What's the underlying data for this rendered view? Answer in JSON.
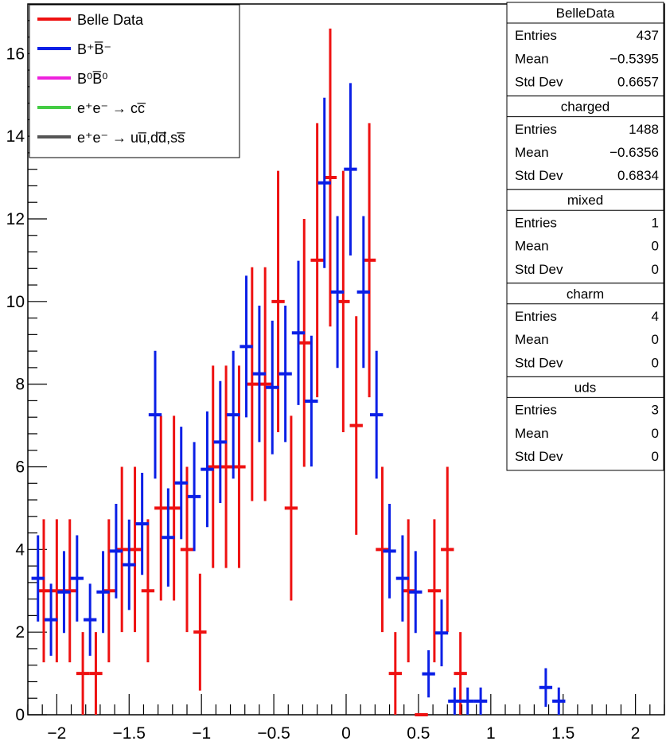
{
  "chart_data": {
    "type": "scatter",
    "title": "",
    "xlabel": "",
    "ylabel": "",
    "xlim": [
      -2.2,
      2.2
    ],
    "ylim": [
      0,
      17.2
    ],
    "x_ticks": [
      -2,
      -1.5,
      -1,
      -0.5,
      0,
      0.5,
      1,
      1.5,
      2
    ],
    "x_tick_labels": [
      "−2",
      "−1.5",
      "−1",
      "−0.5",
      "0",
      "0.5",
      "1",
      "1.5",
      "2"
    ],
    "y_ticks": [
      0,
      2,
      4,
      6,
      8,
      10,
      12,
      14,
      16
    ],
    "y_tick_labels": [
      "0",
      "2",
      "4",
      "6",
      "8",
      "10",
      "12",
      "14",
      "16"
    ],
    "grid": false,
    "legend_position": "top-left",
    "legend": [
      {
        "label": "Belle Data",
        "color": "#ee1111"
      },
      {
        "label": "B⁺B̅⁻",
        "color": "#0a1fe6"
      },
      {
        "label": "B⁰B̅⁰",
        "color": "#ee22dd"
      },
      {
        "label": "e⁺e⁻ → cc̅",
        "color": "#44cc44"
      },
      {
        "label": "e⁺e⁻ → uu̅,dd̅,ss̅",
        "color": "#555555"
      }
    ],
    "series": [
      {
        "name": "Belle Data",
        "color": "#ee1111",
        "bin_width": 0.09,
        "points": [
          [
            -2.09,
            3
          ],
          [
            -2.0,
            3
          ],
          [
            -1.91,
            3
          ],
          [
            -1.82,
            1
          ],
          [
            -1.73,
            1
          ],
          [
            -1.64,
            3
          ],
          [
            -1.55,
            4
          ],
          [
            -1.46,
            4
          ],
          [
            -1.37,
            3
          ],
          [
            -1.28,
            5
          ],
          [
            -1.19,
            5
          ],
          [
            -1.1,
            4
          ],
          [
            -1.01,
            2
          ],
          [
            -0.92,
            6
          ],
          [
            -0.83,
            6
          ],
          [
            -0.74,
            6
          ],
          [
            -0.65,
            8
          ],
          [
            -0.56,
            8
          ],
          [
            -0.47,
            10
          ],
          [
            -0.38,
            5
          ],
          [
            -0.29,
            9
          ],
          [
            -0.2,
            11
          ],
          [
            -0.11,
            13
          ],
          [
            -0.02,
            10
          ],
          [
            0.07,
            7
          ],
          [
            0.16,
            11
          ],
          [
            0.25,
            4
          ],
          [
            0.34,
            1
          ],
          [
            0.43,
            3
          ],
          [
            0.52,
            0
          ],
          [
            0.61,
            3
          ],
          [
            0.7,
            4
          ],
          [
            0.79,
            1
          ]
        ]
      },
      {
        "name": "charged",
        "color": "#0a1fe6",
        "bin_width": 0.09,
        "points": [
          [
            -2.13,
            3.3
          ],
          [
            -2.04,
            2.3
          ],
          [
            -1.95,
            2.97
          ],
          [
            -1.86,
            3.3
          ],
          [
            -1.77,
            2.3
          ],
          [
            -1.68,
            2.97
          ],
          [
            -1.59,
            3.96
          ],
          [
            -1.5,
            3.63
          ],
          [
            -1.41,
            4.62
          ],
          [
            -1.32,
            7.26
          ],
          [
            -1.23,
            4.29
          ],
          [
            -1.14,
            5.61
          ],
          [
            -1.05,
            5.28
          ],
          [
            -0.96,
            5.94
          ],
          [
            -0.87,
            6.6
          ],
          [
            -0.78,
            7.26
          ],
          [
            -0.69,
            8.91
          ],
          [
            -0.6,
            8.25
          ],
          [
            -0.51,
            7.92
          ],
          [
            -0.42,
            8.25
          ],
          [
            -0.33,
            9.24
          ],
          [
            -0.24,
            7.59
          ],
          [
            -0.15,
            12.87
          ],
          [
            -0.06,
            10.23
          ],
          [
            0.03,
            13.2
          ],
          [
            0.12,
            10.23
          ],
          [
            0.21,
            7.26
          ],
          [
            0.3,
            3.96
          ],
          [
            0.39,
            3.3
          ],
          [
            0.48,
            2.97
          ],
          [
            0.57,
            0.99
          ],
          [
            0.66,
            1.98
          ],
          [
            0.75,
            0.33
          ],
          [
            0.84,
            0.33
          ],
          [
            0.93,
            0.33
          ],
          [
            1.38,
            0.66
          ],
          [
            1.47,
            0.33
          ]
        ]
      }
    ],
    "stats_boxes": [
      {
        "name": "BelleData",
        "rows": [
          [
            "Entries",
            "437"
          ],
          [
            "Mean",
            "−0.5395"
          ],
          [
            "Std Dev",
            "0.6657"
          ]
        ]
      },
      {
        "name": "charged",
        "rows": [
          [
            "Entries",
            "1488"
          ],
          [
            "Mean",
            "−0.6356"
          ],
          [
            "Std Dev",
            "0.6834"
          ]
        ]
      },
      {
        "name": "mixed",
        "rows": [
          [
            "Entries",
            "1"
          ],
          [
            "Mean",
            "0"
          ],
          [
            "Std Dev",
            "0"
          ]
        ]
      },
      {
        "name": "charm",
        "rows": [
          [
            "Entries",
            "4"
          ],
          [
            "Mean",
            "0"
          ],
          [
            "Std Dev",
            "0"
          ]
        ]
      },
      {
        "name": "uds",
        "rows": [
          [
            "Entries",
            "3"
          ],
          [
            "Mean",
            "0"
          ],
          [
            "Std Dev",
            "0"
          ]
        ]
      }
    ]
  }
}
